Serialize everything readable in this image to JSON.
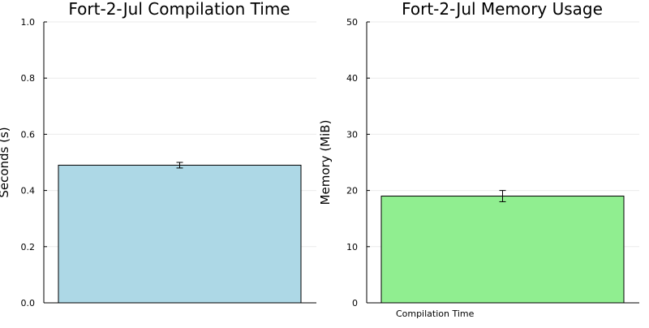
{
  "chart_data": [
    {
      "type": "bar",
      "title": "Fort-2-Jul Compilation Time",
      "xlabel": "",
      "ylabel": "Seconds (s)",
      "categories": [
        ""
      ],
      "values": [
        0.49
      ],
      "error": [
        0.01
      ],
      "ylim": [
        0,
        1.0
      ],
      "yticks": [
        0.0,
        0.2,
        0.4,
        0.6,
        0.8,
        1.0
      ],
      "yticklabels": [
        "0.0",
        "0.2",
        "0.4",
        "0.6",
        "0.8",
        "1.0"
      ],
      "bar_color": "#add8e6",
      "grid": true
    },
    {
      "type": "bar",
      "title": "Fort-2-Jul Memory Usage",
      "xlabel": "",
      "ylabel": "Memory (MiB)",
      "categories": [
        "Compilation Time"
      ],
      "values": [
        19.0
      ],
      "error": [
        1.0
      ],
      "ylim": [
        0,
        50
      ],
      "yticks": [
        0,
        10,
        20,
        30,
        40,
        50
      ],
      "yticklabels": [
        "0",
        "10",
        "20",
        "30",
        "40",
        "50"
      ],
      "bar_color": "#90ee90",
      "grid": true
    }
  ]
}
